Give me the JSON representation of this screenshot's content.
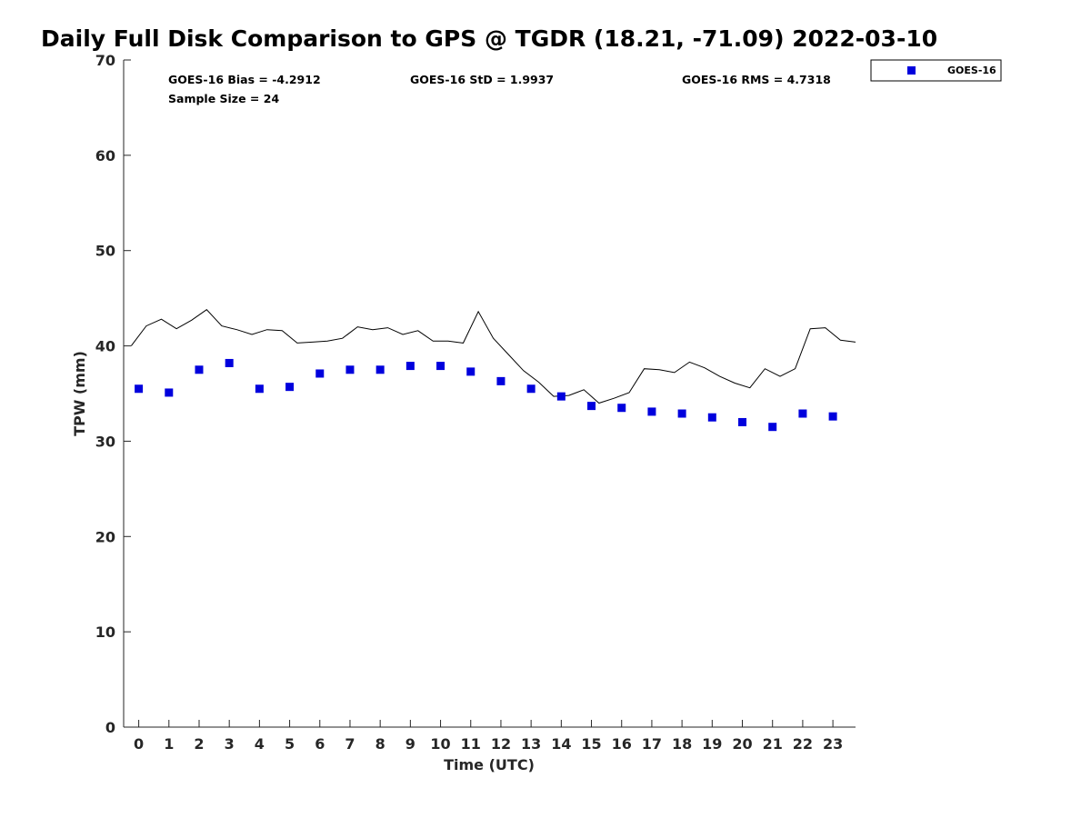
{
  "chart_data": {
    "type": "scatter",
    "title": "Daily Full Disk Comparison to GPS @ TGDR (18.21, -71.09) 2022-03-10",
    "xlabel": "Time (UTC)",
    "ylabel": "TPW (mm)",
    "xlim": [
      -0.5,
      23.75
    ],
    "ylim": [
      0,
      70
    ],
    "x_ticks": [
      0,
      1,
      2,
      3,
      4,
      5,
      6,
      7,
      8,
      9,
      10,
      11,
      12,
      13,
      14,
      15,
      16,
      17,
      18,
      19,
      20,
      21,
      22,
      23
    ],
    "y_ticks": [
      0,
      10,
      20,
      30,
      40,
      50,
      60,
      70
    ],
    "grid": false,
    "legend_position": "top-right-outside",
    "stats": {
      "bias": "GOES-16 Bias = -4.2912",
      "std": "GOES-16 StD = 1.9937",
      "rms": "GOES-16 RMS = 4.7318",
      "sample": "Sample Size = 24"
    },
    "series": [
      {
        "name": "GOES-16",
        "kind": "markers",
        "color": "#0000dd",
        "x": [
          0,
          1,
          2,
          3,
          4,
          5,
          6,
          7,
          8,
          9,
          10,
          11,
          12,
          13,
          14,
          15,
          16,
          17,
          18,
          19,
          20,
          21,
          22,
          23
        ],
        "y": [
          35.5,
          35.1,
          37.5,
          38.2,
          35.5,
          35.7,
          37.1,
          37.5,
          37.5,
          37.9,
          37.9,
          37.3,
          36.3,
          35.5,
          34.7,
          33.7,
          33.5,
          33.1,
          32.9,
          32.5,
          32.0,
          31.5,
          32.9,
          32.6
        ]
      },
      {
        "name": "GPS",
        "kind": "line",
        "color": "#000000",
        "x": [
          -0.25,
          0.25,
          0.75,
          1.25,
          1.75,
          2.25,
          2.75,
          3.25,
          3.75,
          4.25,
          4.75,
          5.25,
          5.75,
          6.25,
          6.75,
          7.25,
          7.75,
          8.25,
          8.75,
          9.25,
          9.75,
          10.25,
          10.75,
          11.25,
          11.75,
          12.25,
          12.75,
          13.25,
          13.75,
          14.25,
          14.75,
          15.25,
          15.75,
          16.25,
          16.75,
          17.25,
          17.75,
          18.25,
          18.75,
          19.25,
          19.75,
          20.25,
          20.75,
          21.25,
          21.75,
          22.25,
          22.75,
          23.25,
          23.75
        ],
        "y": [
          40.0,
          42.1,
          42.8,
          41.8,
          42.7,
          43.8,
          42.1,
          41.7,
          41.2,
          41.7,
          41.6,
          40.3,
          40.4,
          40.5,
          40.8,
          42.0,
          41.7,
          41.9,
          41.2,
          41.6,
          40.5,
          40.5,
          40.3,
          43.6,
          40.8,
          39.1,
          37.4,
          36.2,
          34.7,
          34.8,
          35.4,
          34.0,
          34.5,
          35.1,
          37.6,
          37.5,
          37.2,
          38.3,
          37.7,
          36.8,
          36.1,
          35.6,
          37.6,
          36.8,
          37.6,
          41.8,
          41.9,
          40.6,
          40.4
        ]
      }
    ]
  }
}
